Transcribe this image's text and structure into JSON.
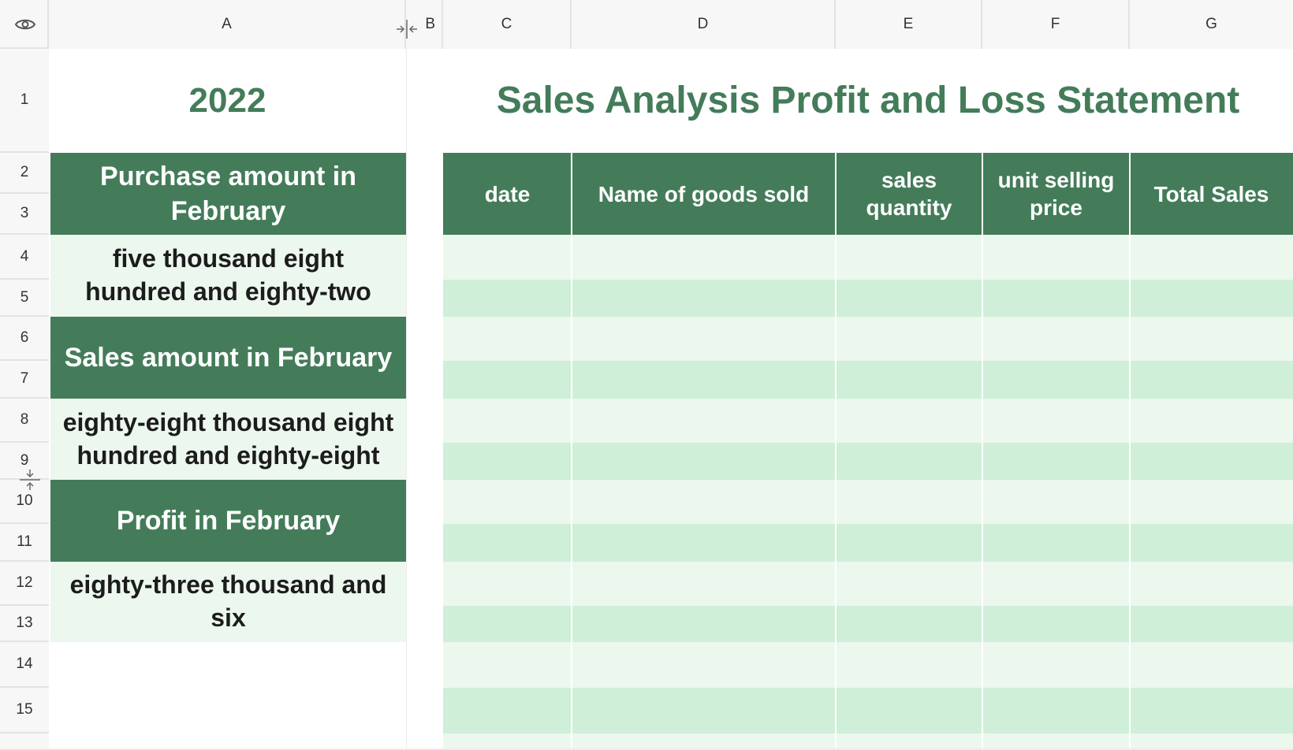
{
  "toolbar": {
    "visibility_icon": "eye-icon"
  },
  "columns": [
    "A",
    "B",
    "C",
    "D",
    "E",
    "F",
    "G"
  ],
  "rows": [
    "1",
    "2",
    "3",
    "4",
    "5",
    "6",
    "7",
    "8",
    "9",
    "10",
    "11",
    "12",
    "13",
    "14",
    "15"
  ],
  "sheet": {
    "year": "2022",
    "title": "Sales Analysis Profit and Loss Statement",
    "summary": [
      {
        "label": "Purchase amount in February",
        "value": "five thousand eight hundred and eighty-two"
      },
      {
        "label": "Sales amount in February",
        "value": "eighty-eight thousand eight hundred and eighty-eight"
      },
      {
        "label": "Profit in February",
        "value": "eighty-three thousand and six"
      }
    ],
    "table_headers": [
      "date",
      "Name of goods sold",
      "sales quantity",
      "unit selling price",
      "Total Sales"
    ]
  },
  "colors": {
    "accent_green": "#447c5a",
    "light_green": "#ecf7ee",
    "stripe_green": "#cfefd8",
    "header_gray": "#f7f7f7"
  },
  "icons": [
    "eye-icon",
    "column-resize-icon",
    "row-resize-icon"
  ]
}
